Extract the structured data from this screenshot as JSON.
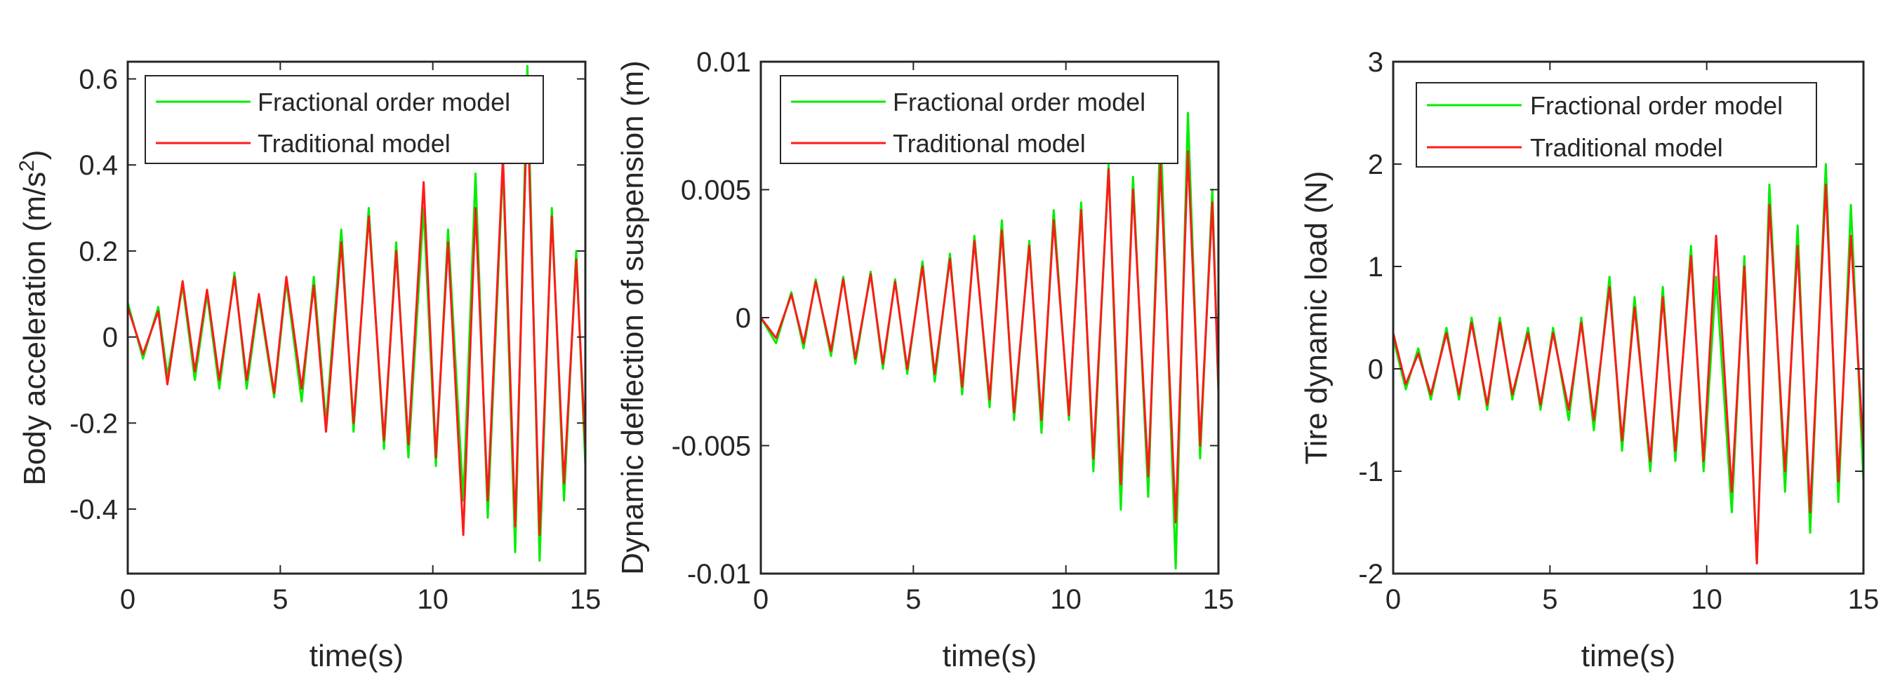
{
  "colors": {
    "fractional": "#00ee00",
    "traditional": "#ff1a1a",
    "axis": "#262626"
  },
  "chart_data": [
    {
      "type": "line",
      "xlabel": "time(s)",
      "ylabel": "Body acceleration (m/s",
      "ylabel_sup": "2",
      "ylabel_end": ")",
      "xlim": [
        0,
        15
      ],
      "ylim": [
        -0.55,
        0.64
      ],
      "xticks": [
        0,
        5,
        10,
        15
      ],
      "xtick_labels": [
        "0",
        "5",
        "10",
        "15"
      ],
      "yticks": [
        -0.4,
        -0.2,
        0,
        0.2,
        0.4,
        0.6
      ],
      "ytick_labels": [
        "-0.4",
        "-0.2",
        "0",
        "0.2",
        "0.4",
        "0.6"
      ],
      "legend": {
        "location": "top-left",
        "entries": [
          "Fractional order model",
          "Traditional model"
        ]
      },
      "series": [
        {
          "name": "Fractional order model",
          "color": "#00ee00",
          "x": [
            0.0,
            0.5,
            1.0,
            1.3,
            1.8,
            2.2,
            2.6,
            3.0,
            3.5,
            3.9,
            4.3,
            4.8,
            5.2,
            5.7,
            6.1,
            6.5,
            7.0,
            7.4,
            7.9,
            8.4,
            8.8,
            9.2,
            9.7,
            10.1,
            10.5,
            11.0,
            11.4,
            11.8,
            12.3,
            12.7,
            13.1,
            13.5,
            13.9,
            14.3,
            14.7,
            15.0
          ],
          "y": [
            0.08,
            -0.05,
            0.07,
            -0.09,
            0.12,
            -0.1,
            0.1,
            -0.12,
            0.15,
            -0.12,
            0.09,
            -0.14,
            0.13,
            -0.15,
            0.14,
            -0.2,
            0.25,
            -0.22,
            0.3,
            -0.26,
            0.22,
            -0.28,
            0.3,
            -0.3,
            0.25,
            -0.38,
            0.38,
            -0.42,
            0.4,
            -0.5,
            0.63,
            -0.52,
            0.3,
            -0.38,
            0.2,
            -0.3
          ]
        },
        {
          "name": "Traditional model",
          "color": "#ff1a1a",
          "x": [
            0.0,
            0.5,
            1.0,
            1.3,
            1.8,
            2.2,
            2.6,
            3.0,
            3.5,
            3.9,
            4.3,
            4.8,
            5.2,
            5.7,
            6.1,
            6.5,
            7.0,
            7.4,
            7.9,
            8.4,
            8.8,
            9.2,
            9.7,
            10.1,
            10.5,
            11.0,
            11.4,
            11.8,
            12.3,
            12.7,
            13.1,
            13.5,
            13.9,
            14.3,
            14.7,
            15.0
          ],
          "y": [
            0.07,
            -0.04,
            0.06,
            -0.11,
            0.13,
            -0.08,
            0.11,
            -0.1,
            0.14,
            -0.1,
            0.1,
            -0.13,
            0.14,
            -0.12,
            0.12,
            -0.22,
            0.22,
            -0.2,
            0.28,
            -0.24,
            0.2,
            -0.25,
            0.36,
            -0.28,
            0.22,
            -0.46,
            0.3,
            -0.38,
            0.42,
            -0.44,
            0.55,
            -0.46,
            0.28,
            -0.34,
            0.18,
            -0.26
          ]
        }
      ]
    },
    {
      "type": "line",
      "xlabel": "time(s)",
      "ylabel": "Dynamic deflection of suspension (m)",
      "xlim": [
        0,
        15
      ],
      "ylim": [
        -0.01,
        0.01
      ],
      "xticks": [
        0,
        5,
        10,
        15
      ],
      "xtick_labels": [
        "0",
        "5",
        "10",
        "15"
      ],
      "yticks": [
        -0.01,
        -0.005,
        0,
        0.005,
        0.01
      ],
      "ytick_labels": [
        "-0.01",
        "-0.005",
        "0",
        "0.005",
        "0.01"
      ],
      "legend": {
        "location": "top-left",
        "entries": [
          "Fractional order model",
          "Traditional model"
        ]
      },
      "series": [
        {
          "name": "Fractional order model",
          "color": "#00ee00",
          "x": [
            0.0,
            0.5,
            1.0,
            1.4,
            1.8,
            2.3,
            2.7,
            3.1,
            3.6,
            4.0,
            4.4,
            4.8,
            5.3,
            5.7,
            6.2,
            6.6,
            7.0,
            7.5,
            7.9,
            8.3,
            8.8,
            9.2,
            9.6,
            10.1,
            10.5,
            10.9,
            11.4,
            11.8,
            12.2,
            12.7,
            13.1,
            13.6,
            14.0,
            14.4,
            14.8,
            15.0
          ],
          "y": [
            0.0,
            -0.001,
            0.001,
            -0.0012,
            0.0015,
            -0.0015,
            0.0016,
            -0.0018,
            0.0018,
            -0.002,
            0.0015,
            -0.0022,
            0.0022,
            -0.0025,
            0.0025,
            -0.003,
            0.0032,
            -0.0035,
            0.0038,
            -0.004,
            0.003,
            -0.0045,
            0.0042,
            -0.004,
            0.0045,
            -0.006,
            0.006,
            -0.0075,
            0.0055,
            -0.007,
            0.0075,
            -0.0098,
            0.008,
            -0.0055,
            0.005,
            -0.003
          ]
        },
        {
          "name": "Traditional model",
          "color": "#ff1a1a",
          "x": [
            0.0,
            0.5,
            1.0,
            1.4,
            1.8,
            2.3,
            2.7,
            3.1,
            3.6,
            4.0,
            4.4,
            4.8,
            5.3,
            5.7,
            6.2,
            6.6,
            7.0,
            7.5,
            7.9,
            8.3,
            8.8,
            9.2,
            9.6,
            10.1,
            10.5,
            10.9,
            11.4,
            11.8,
            12.2,
            12.7,
            13.1,
            13.6,
            14.0,
            14.4,
            14.8,
            15.0
          ],
          "y": [
            0.0,
            -0.0008,
            0.0009,
            -0.001,
            0.0014,
            -0.0013,
            0.0015,
            -0.0016,
            0.0017,
            -0.0018,
            0.0014,
            -0.002,
            0.002,
            -0.0022,
            0.0023,
            -0.0027,
            0.003,
            -0.0032,
            0.0034,
            -0.0037,
            0.0028,
            -0.004,
            0.0038,
            -0.0038,
            0.0042,
            -0.0055,
            0.0058,
            -0.0065,
            0.005,
            -0.0062,
            0.006,
            -0.008,
            0.0065,
            -0.005,
            0.0045,
            -0.0028
          ]
        }
      ]
    },
    {
      "type": "line",
      "xlabel": "time(s)",
      "ylabel": "Tire dynamic load (N)",
      "xlim": [
        0,
        15
      ],
      "ylim": [
        -2,
        3
      ],
      "xticks": [
        0,
        5,
        10,
        15
      ],
      "xtick_labels": [
        "0",
        "5",
        "10",
        "15"
      ],
      "yticks": [
        -2,
        -1,
        0,
        1,
        2,
        3
      ],
      "ytick_labels": [
        "-2",
        "-1",
        "0",
        "1",
        "2",
        "3"
      ],
      "legend": {
        "location": "top-left",
        "entries": [
          "Fractional order model",
          "Traditional model"
        ]
      },
      "series": [
        {
          "name": "Fractional order model",
          "color": "#00ee00",
          "x": [
            0.0,
            0.4,
            0.8,
            1.2,
            1.7,
            2.1,
            2.5,
            3.0,
            3.4,
            3.8,
            4.3,
            4.7,
            5.1,
            5.6,
            6.0,
            6.4,
            6.9,
            7.3,
            7.7,
            8.2,
            8.6,
            9.0,
            9.5,
            9.9,
            10.3,
            10.8,
            11.2,
            11.6,
            12.0,
            12.5,
            12.9,
            13.3,
            13.8,
            14.2,
            14.6,
            15.0
          ],
          "y": [
            0.3,
            -0.2,
            0.2,
            -0.3,
            0.4,
            -0.3,
            0.5,
            -0.4,
            0.5,
            -0.3,
            0.4,
            -0.4,
            0.4,
            -0.5,
            0.5,
            -0.6,
            0.9,
            -0.8,
            0.7,
            -1.0,
            0.8,
            -0.9,
            1.2,
            -1.0,
            0.9,
            -1.4,
            1.1,
            -1.9,
            1.8,
            -1.2,
            1.4,
            -1.6,
            2.0,
            -1.3,
            1.6,
            -1.1
          ]
        },
        {
          "name": "Traditional model",
          "color": "#ff1a1a",
          "x": [
            0.0,
            0.4,
            0.8,
            1.2,
            1.7,
            2.1,
            2.5,
            3.0,
            3.4,
            3.8,
            4.3,
            4.7,
            5.1,
            5.6,
            6.0,
            6.4,
            6.9,
            7.3,
            7.7,
            8.2,
            8.6,
            9.0,
            9.5,
            9.9,
            10.3,
            10.8,
            11.2,
            11.6,
            12.0,
            12.5,
            12.9,
            13.3,
            13.8,
            14.2,
            14.6,
            15.0
          ],
          "y": [
            0.35,
            -0.15,
            0.15,
            -0.25,
            0.35,
            -0.25,
            0.45,
            -0.35,
            0.45,
            -0.25,
            0.35,
            -0.35,
            0.35,
            -0.4,
            0.45,
            -0.5,
            0.8,
            -0.7,
            0.6,
            -0.9,
            0.7,
            -0.8,
            1.1,
            -0.9,
            1.3,
            -1.2,
            1.0,
            -1.9,
            1.6,
            -1.0,
            1.2,
            -1.4,
            1.8,
            -1.1,
            1.3,
            -0.8
          ]
        }
      ]
    }
  ]
}
